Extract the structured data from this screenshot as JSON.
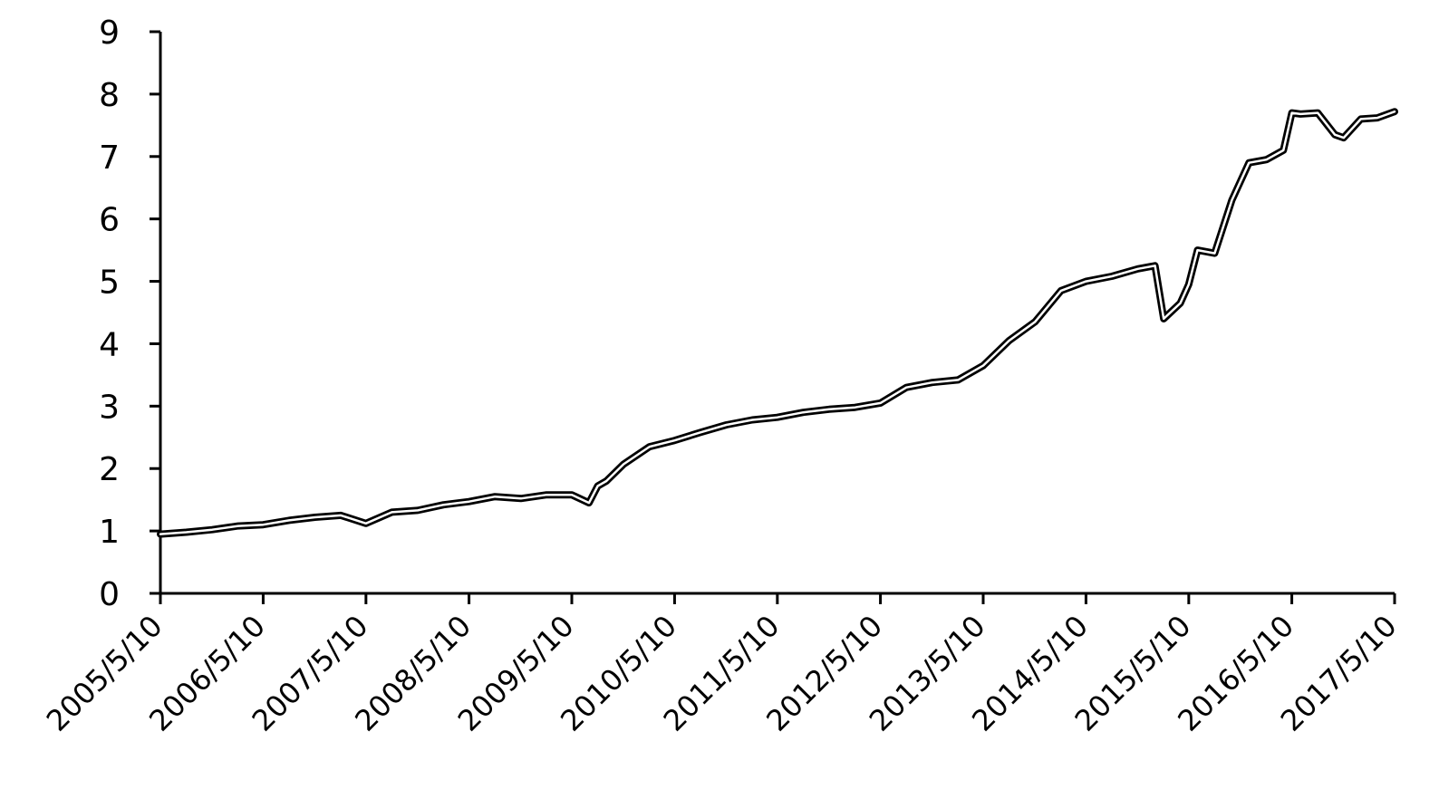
{
  "chart_data": {
    "type": "line",
    "title": "",
    "xlabel": "",
    "ylabel": "",
    "ylim": [
      0,
      9
    ],
    "yticks": [
      "0",
      "1",
      "2",
      "3",
      "4",
      "5",
      "6",
      "7",
      "8",
      "9"
    ],
    "xlim": [
      "2005/5/10",
      "2017/5/10"
    ],
    "xticks": [
      "2005/5/10",
      "2006/5/10",
      "2007/5/10",
      "2008/5/10",
      "2009/5/10",
      "2010/5/10",
      "2011/5/10",
      "2012/5/10",
      "2013/5/10",
      "2014/5/10",
      "2015/5/10",
      "2016/5/10",
      "2017/5/10"
    ],
    "grid": false,
    "legend": "none",
    "line_color": "#000000",
    "series": [
      {
        "x": [
          "2005/5/10",
          "2005/8/10",
          "2005/11/10",
          "2006/2/10",
          "2006/5/10",
          "2006/8/10",
          "2006/11/10",
          "2007/2/10",
          "2007/5/10",
          "2007/8/10",
          "2007/11/10",
          "2008/2/10",
          "2008/5/10",
          "2008/8/10",
          "2008/11/10",
          "2009/2/10",
          "2009/5/10",
          "2009/7/10",
          "2009/8/10",
          "2009/9/10",
          "2009/11/10",
          "2010/2/10",
          "2010/5/10",
          "2010/8/10",
          "2010/11/10",
          "2011/2/10",
          "2011/5/10",
          "2011/8/10",
          "2011/11/10",
          "2012/2/10",
          "2012/5/10",
          "2012/8/10",
          "2012/11/10",
          "2013/2/10",
          "2013/5/10",
          "2013/8/10",
          "2013/11/10",
          "2014/2/10",
          "2014/5/10",
          "2014/8/10",
          "2014/11/10",
          "2015/1/10",
          "2015/2/10",
          "2015/4/10",
          "2015/5/10",
          "2015/6/10",
          "2015/8/10",
          "2015/10/10",
          "2015/12/10",
          "2016/2/10",
          "2016/4/10",
          "2016/5/10",
          "2016/6/10",
          "2016/8/10",
          "2016/10/10",
          "2016/11/10",
          "2017/1/10",
          "2017/3/10",
          "2017/5/10"
        ],
        "values": [
          0.95,
          0.98,
          1.02,
          1.08,
          1.1,
          1.17,
          1.22,
          1.25,
          1.12,
          1.3,
          1.33,
          1.42,
          1.47,
          1.55,
          1.52,
          1.58,
          1.58,
          1.45,
          1.72,
          1.8,
          2.07,
          2.35,
          2.45,
          2.58,
          2.7,
          2.78,
          2.82,
          2.9,
          2.95,
          2.98,
          3.05,
          3.3,
          3.38,
          3.42,
          3.65,
          4.05,
          4.35,
          4.85,
          5.0,
          5.08,
          5.2,
          5.25,
          4.4,
          4.65,
          4.95,
          5.5,
          5.45,
          6.3,
          6.9,
          6.95,
          7.1,
          7.7,
          7.68,
          7.7,
          7.35,
          7.3,
          7.6,
          7.62,
          7.72
        ]
      }
    ]
  }
}
